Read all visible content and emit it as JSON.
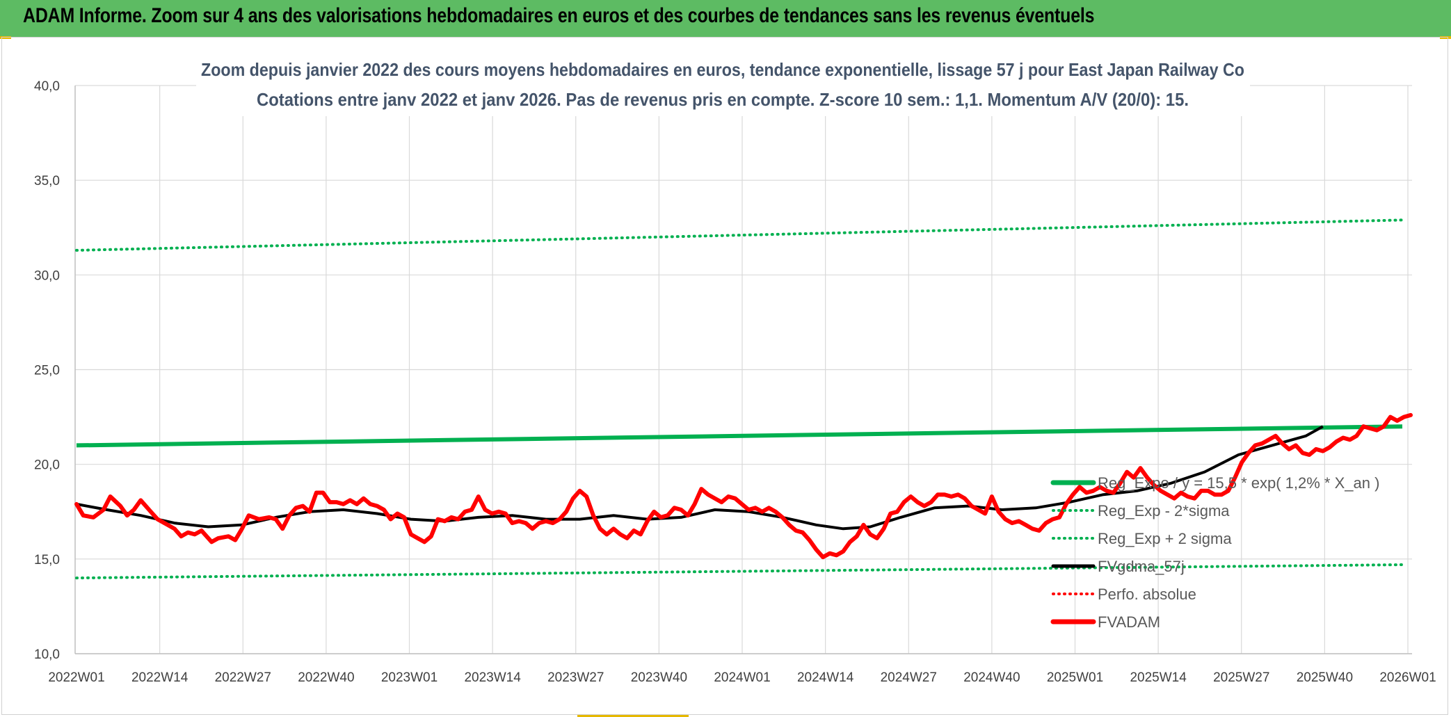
{
  "header": {
    "title": "ADAM Informe. Zoom sur 4 ans des valorisations hebdomadaires en euros et des courbes de tendances sans les revenus éventuels"
  },
  "colors": {
    "header_bg": "#5dbb63",
    "trend": "#00b050",
    "bands": "#00b050",
    "smooth": "#000000",
    "price": "#ff0000",
    "perfo": "#ff0000"
  },
  "chart_data": {
    "type": "line",
    "title": "Zoom depuis janvier 2022 des cours moyens hebdomadaires en euros, tendance exponentielle, lissage 57 j pour East Japan Railway Co",
    "subtitle": "Cotations entre janv 2022 et janv 2026. Pas de revenus pris en compte. Z-score 10 sem.: 1,1. Momentum A/V (20/0): 15.",
    "xlabel": "",
    "ylabel": "",
    "ylim": [
      10,
      40
    ],
    "yticks": [
      "10,0",
      "15,0",
      "20,0",
      "25,0",
      "30,0",
      "35,0",
      "40,0"
    ],
    "x_tick_labels": [
      "2022W01",
      "2022W14",
      "2022W27",
      "2022W40",
      "2023W01",
      "2023W14",
      "2023W27",
      "2023W40",
      "2024W01",
      "2024W14",
      "2024W27",
      "2024W40",
      "2025W01",
      "2025W14",
      "2025W27",
      "2025W40",
      "2026W01"
    ],
    "x_weeks": 209,
    "grid": true,
    "legend_position": "bottom-right",
    "series": [
      {
        "name": "Reg_Expo / y = 15,5 * exp( 1,2% *  X_an )",
        "style": "solid-thick",
        "start": 21.0,
        "end": 22.0
      },
      {
        "name": "Reg_Exp - 2*sigma",
        "style": "dotted",
        "start": 14.0,
        "end": 14.7
      },
      {
        "name": "Reg_Exp + 2 sigma",
        "style": "dotted",
        "start": 31.3,
        "end": 32.9
      },
      {
        "name": "FVgdma_57j",
        "style": "solid",
        "points": [
          [
            1,
            17.9
          ],
          [
            10,
            17.6
          ],
          [
            20,
            17.3
          ],
          [
            30,
            16.9
          ],
          [
            40,
            16.7
          ],
          [
            50,
            16.8
          ],
          [
            60,
            17.2
          ],
          [
            70,
            17.5
          ],
          [
            80,
            17.6
          ],
          [
            90,
            17.4
          ],
          [
            100,
            17.1
          ],
          [
            110,
            17.0
          ],
          [
            120,
            17.2
          ],
          [
            130,
            17.3
          ],
          [
            140,
            17.1
          ],
          [
            150,
            17.1
          ],
          [
            160,
            17.3
          ],
          [
            170,
            17.1
          ],
          [
            180,
            17.2
          ],
          [
            190,
            17.6
          ],
          [
            200,
            17.5
          ],
          [
            210,
            17.2
          ],
          [
            220,
            16.8
          ],
          [
            228,
            16.6
          ],
          [
            236,
            16.7
          ],
          [
            245,
            17.2
          ],
          [
            255,
            17.7
          ],
          [
            265,
            17.8
          ],
          [
            275,
            17.6
          ],
          [
            285,
            17.7
          ],
          [
            295,
            18.0
          ],
          [
            305,
            18.4
          ],
          [
            315,
            18.6
          ],
          [
            325,
            19.0
          ],
          [
            335,
            19.6
          ],
          [
            345,
            20.5
          ],
          [
            355,
            21.0
          ],
          [
            365,
            21.5
          ],
          [
            370,
            22.0
          ]
        ]
      },
      {
        "name": "Perfo. absolue",
        "style": "dotted",
        "points": []
      },
      {
        "name": "FVADAM",
        "style": "solid-thick",
        "points": [
          [
            1,
            17.9
          ],
          [
            3,
            17.3
          ],
          [
            6,
            17.2
          ],
          [
            9,
            17.6
          ],
          [
            11,
            18.3
          ],
          [
            14,
            17.8
          ],
          [
            16,
            17.3
          ],
          [
            18,
            17.6
          ],
          [
            20,
            18.1
          ],
          [
            23,
            17.5
          ],
          [
            25,
            17.1
          ],
          [
            28,
            16.8
          ],
          [
            30,
            16.6
          ],
          [
            32,
            16.2
          ],
          [
            34,
            16.4
          ],
          [
            36,
            16.3
          ],
          [
            38,
            16.5
          ],
          [
            41,
            15.9
          ],
          [
            43,
            16.1
          ],
          [
            46,
            16.2
          ],
          [
            48,
            16.0
          ],
          [
            50,
            16.6
          ],
          [
            52,
            17.3
          ],
          [
            55,
            17.1
          ],
          [
            58,
            17.2
          ],
          [
            60,
            17.1
          ],
          [
            62,
            16.6
          ],
          [
            64,
            17.3
          ],
          [
            66,
            17.7
          ],
          [
            68,
            17.8
          ],
          [
            70,
            17.5
          ],
          [
            72,
            18.5
          ],
          [
            74,
            18.5
          ],
          [
            76,
            18.0
          ],
          [
            78,
            18.0
          ],
          [
            80,
            17.9
          ],
          [
            82,
            18.1
          ],
          [
            84,
            17.9
          ],
          [
            86,
            18.2
          ],
          [
            88,
            17.9
          ],
          [
            90,
            17.8
          ],
          [
            92,
            17.6
          ],
          [
            94,
            17.1
          ],
          [
            96,
            17.4
          ],
          [
            98,
            17.2
          ],
          [
            100,
            16.3
          ],
          [
            102,
            16.1
          ],
          [
            104,
            15.9
          ],
          [
            106,
            16.2
          ],
          [
            108,
            17.1
          ],
          [
            110,
            17.0
          ],
          [
            112,
            17.2
          ],
          [
            114,
            17.1
          ],
          [
            116,
            17.5
          ],
          [
            118,
            17.6
          ],
          [
            120,
            18.3
          ],
          [
            122,
            17.6
          ],
          [
            124,
            17.4
          ],
          [
            126,
            17.5
          ],
          [
            128,
            17.4
          ],
          [
            130,
            16.9
          ],
          [
            132,
            17.0
          ],
          [
            134,
            16.9
          ],
          [
            136,
            16.6
          ],
          [
            138,
            16.9
          ],
          [
            140,
            17.0
          ],
          [
            142,
            16.9
          ],
          [
            144,
            17.1
          ],
          [
            146,
            17.5
          ],
          [
            148,
            18.2
          ],
          [
            150,
            18.6
          ],
          [
            152,
            18.3
          ],
          [
            154,
            17.3
          ],
          [
            156,
            16.6
          ],
          [
            158,
            16.3
          ],
          [
            160,
            16.6
          ],
          [
            162,
            16.3
          ],
          [
            164,
            16.1
          ],
          [
            166,
            16.5
          ],
          [
            168,
            16.3
          ],
          [
            170,
            17.0
          ],
          [
            172,
            17.5
          ],
          [
            174,
            17.2
          ],
          [
            176,
            17.3
          ],
          [
            178,
            17.7
          ],
          [
            180,
            17.6
          ],
          [
            182,
            17.3
          ],
          [
            184,
            17.9
          ],
          [
            186,
            18.7
          ],
          [
            188,
            18.4
          ],
          [
            190,
            18.2
          ],
          [
            192,
            18.0
          ],
          [
            194,
            18.3
          ],
          [
            196,
            18.2
          ],
          [
            198,
            17.9
          ],
          [
            200,
            17.6
          ],
          [
            202,
            17.7
          ],
          [
            204,
            17.5
          ],
          [
            206,
            17.7
          ],
          [
            208,
            17.5
          ],
          [
            210,
            17.2
          ],
          [
            212,
            16.8
          ],
          [
            214,
            16.5
          ],
          [
            216,
            16.4
          ],
          [
            218,
            16.0
          ],
          [
            220,
            15.5
          ],
          [
            222,
            15.1
          ],
          [
            224,
            15.3
          ],
          [
            226,
            15.2
          ],
          [
            228,
            15.4
          ],
          [
            230,
            15.9
          ],
          [
            232,
            16.2
          ],
          [
            234,
            16.8
          ],
          [
            236,
            16.3
          ],
          [
            238,
            16.1
          ],
          [
            240,
            16.6
          ],
          [
            242,
            17.4
          ],
          [
            244,
            17.5
          ],
          [
            246,
            18.0
          ],
          [
            248,
            18.3
          ],
          [
            250,
            18.0
          ],
          [
            252,
            17.8
          ],
          [
            254,
            18.0
          ],
          [
            256,
            18.4
          ],
          [
            258,
            18.4
          ],
          [
            260,
            18.3
          ],
          [
            262,
            18.4
          ],
          [
            264,
            18.2
          ],
          [
            266,
            17.8
          ],
          [
            268,
            17.6
          ],
          [
            270,
            17.4
          ],
          [
            272,
            18.3
          ],
          [
            274,
            17.5
          ],
          [
            276,
            17.1
          ],
          [
            278,
            16.9
          ],
          [
            280,
            17.0
          ],
          [
            282,
            16.8
          ],
          [
            284,
            16.6
          ],
          [
            286,
            16.5
          ],
          [
            288,
            16.9
          ],
          [
            290,
            17.1
          ],
          [
            292,
            17.2
          ],
          [
            294,
            17.9
          ],
          [
            296,
            18.4
          ],
          [
            298,
            18.8
          ],
          [
            300,
            18.5
          ],
          [
            302,
            18.6
          ],
          [
            304,
            18.8
          ],
          [
            306,
            18.6
          ],
          [
            308,
            18.5
          ],
          [
            310,
            19.0
          ],
          [
            312,
            19.6
          ],
          [
            314,
            19.3
          ],
          [
            316,
            19.8
          ],
          [
            318,
            19.3
          ],
          [
            320,
            18.9
          ],
          [
            322,
            18.6
          ],
          [
            324,
            18.4
          ],
          [
            326,
            18.2
          ],
          [
            328,
            18.5
          ],
          [
            330,
            18.3
          ],
          [
            332,
            18.2
          ],
          [
            334,
            18.6
          ],
          [
            336,
            18.6
          ],
          [
            338,
            18.4
          ],
          [
            340,
            18.4
          ],
          [
            342,
            18.6
          ],
          [
            344,
            19.3
          ],
          [
            346,
            20.1
          ],
          [
            348,
            20.6
          ],
          [
            350,
            21.0
          ],
          [
            352,
            21.1
          ],
          [
            354,
            21.3
          ],
          [
            356,
            21.5
          ],
          [
            358,
            21.1
          ],
          [
            360,
            20.8
          ],
          [
            362,
            21.0
          ],
          [
            364,
            20.6
          ],
          [
            366,
            20.5
          ],
          [
            368,
            20.8
          ],
          [
            370,
            20.7
          ],
          [
            372,
            20.9
          ],
          [
            374,
            21.2
          ],
          [
            376,
            21.4
          ],
          [
            378,
            21.3
          ],
          [
            380,
            21.5
          ],
          [
            382,
            22.0
          ],
          [
            384,
            21.9
          ],
          [
            386,
            21.8
          ],
          [
            388,
            22.0
          ],
          [
            390,
            22.5
          ],
          [
            392,
            22.3
          ],
          [
            394,
            22.5
          ],
          [
            396,
            22.6
          ]
        ]
      }
    ]
  }
}
